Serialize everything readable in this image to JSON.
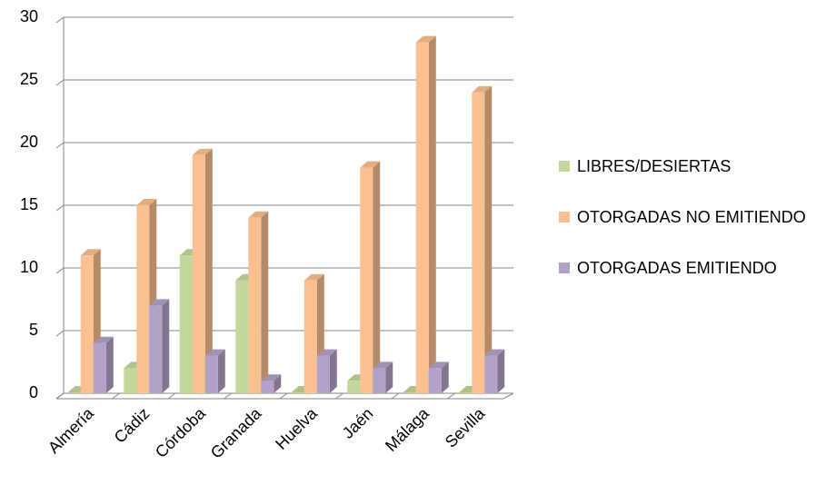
{
  "chart_data": {
    "type": "bar3d",
    "categories": [
      "Almería",
      "Cádiz",
      "Córdoba",
      "Granada",
      "Huelva",
      "Jaén",
      "Málaga",
      "Sevilla"
    ],
    "series": [
      {
        "name": "LIBRES/DESIERTAS",
        "color": "#c3d69b",
        "values": [
          0,
          2,
          11,
          9,
          0,
          1,
          0,
          0
        ]
      },
      {
        "name": "OTORGADAS NO EMITIENDO",
        "color": "#fac090",
        "values": [
          11,
          15,
          19,
          14,
          9,
          18,
          28,
          24
        ]
      },
      {
        "name": "OTORGADAS EMITIENDO",
        "color": "#b3a2c7",
        "values": [
          4,
          7,
          3,
          1,
          3,
          2,
          2,
          3
        ]
      }
    ],
    "ylim": [
      0,
      30
    ],
    "yticks": [
      0,
      5,
      10,
      15,
      20,
      25,
      30
    ],
    "grid": true,
    "legend": "right"
  }
}
